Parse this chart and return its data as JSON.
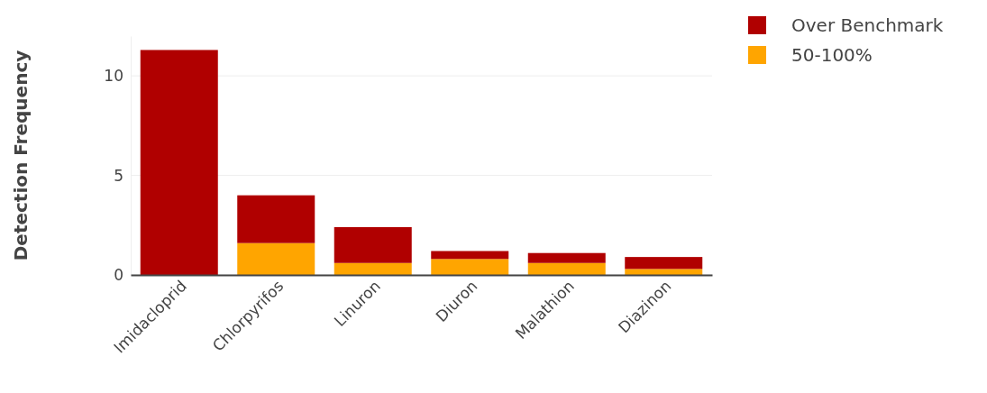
{
  "chart_data": {
    "type": "bar",
    "ylabel": "Detection Frequency",
    "categories": [
      "Imidacloprid",
      "Chlorpyrifos",
      "Linuron",
      "Diuron",
      "Malathion",
      "Diazinon"
    ],
    "stacked": true,
    "series": [
      {
        "name": "50-100%",
        "color": "#ffa500",
        "values": [
          0,
          1.6,
          0.6,
          0.8,
          0.6,
          0.3
        ]
      },
      {
        "name": "Over Benchmark",
        "color": "#b00000",
        "values": [
          11.3,
          2.4,
          1.8,
          0.4,
          0.5,
          0.6
        ]
      }
    ],
    "ylim": [
      0,
      12
    ],
    "yticks": [
      0,
      5,
      10
    ],
    "grid": "y",
    "legend": "top right"
  }
}
